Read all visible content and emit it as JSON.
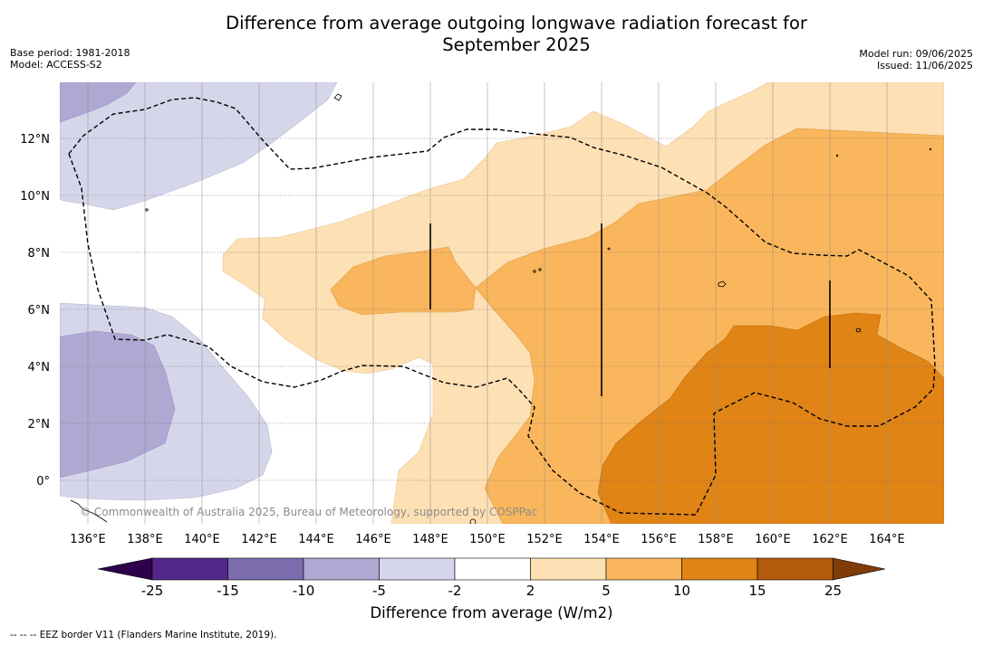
{
  "title_line1": "Difference from average outgoing longwave radiation forecast for",
  "title_line2": "September 2025",
  "meta": {
    "base_period": "Base period: 1981-2018",
    "model": "Model: ACCESS-S2",
    "model_run": "Model run: 09/06/2025",
    "issued": "Issued: 11/06/2025"
  },
  "map": {
    "lon_ticks": [
      "136°E",
      "138°E",
      "140°E",
      "142°E",
      "144°E",
      "146°E",
      "148°E",
      "150°E",
      "152°E",
      "154°E",
      "156°E",
      "158°E",
      "160°E",
      "162°E",
      "164°E"
    ],
    "lat_ticks": [
      "12°N",
      "10°N",
      "8°N",
      "6°N",
      "4°N",
      "2°N",
      "0°"
    ],
    "copyright": "© Commonwealth of Australia 2025, Bureau of Meteorology, supported by COSPPac"
  },
  "colorbar": {
    "tick_labels": [
      "-25",
      "-15",
      "-10",
      "-5",
      "-2",
      "2",
      "5",
      "10",
      "15",
      "25"
    ],
    "colors": [
      "#53268a",
      "#7b6cad",
      "#afa8d3",
      "#d6d6ea",
      "#ffffff",
      "#fde0b4",
      "#fab65c",
      "#e08416",
      "#b35a0c"
    ],
    "low_extend_color": "#2d0049",
    "high_extend_color": "#7f3b08",
    "label": "Difference from average (W/m2)"
  },
  "footnote": "--  --  -- EEZ border V11 (Flanders Marine Institute, 2019)."
}
